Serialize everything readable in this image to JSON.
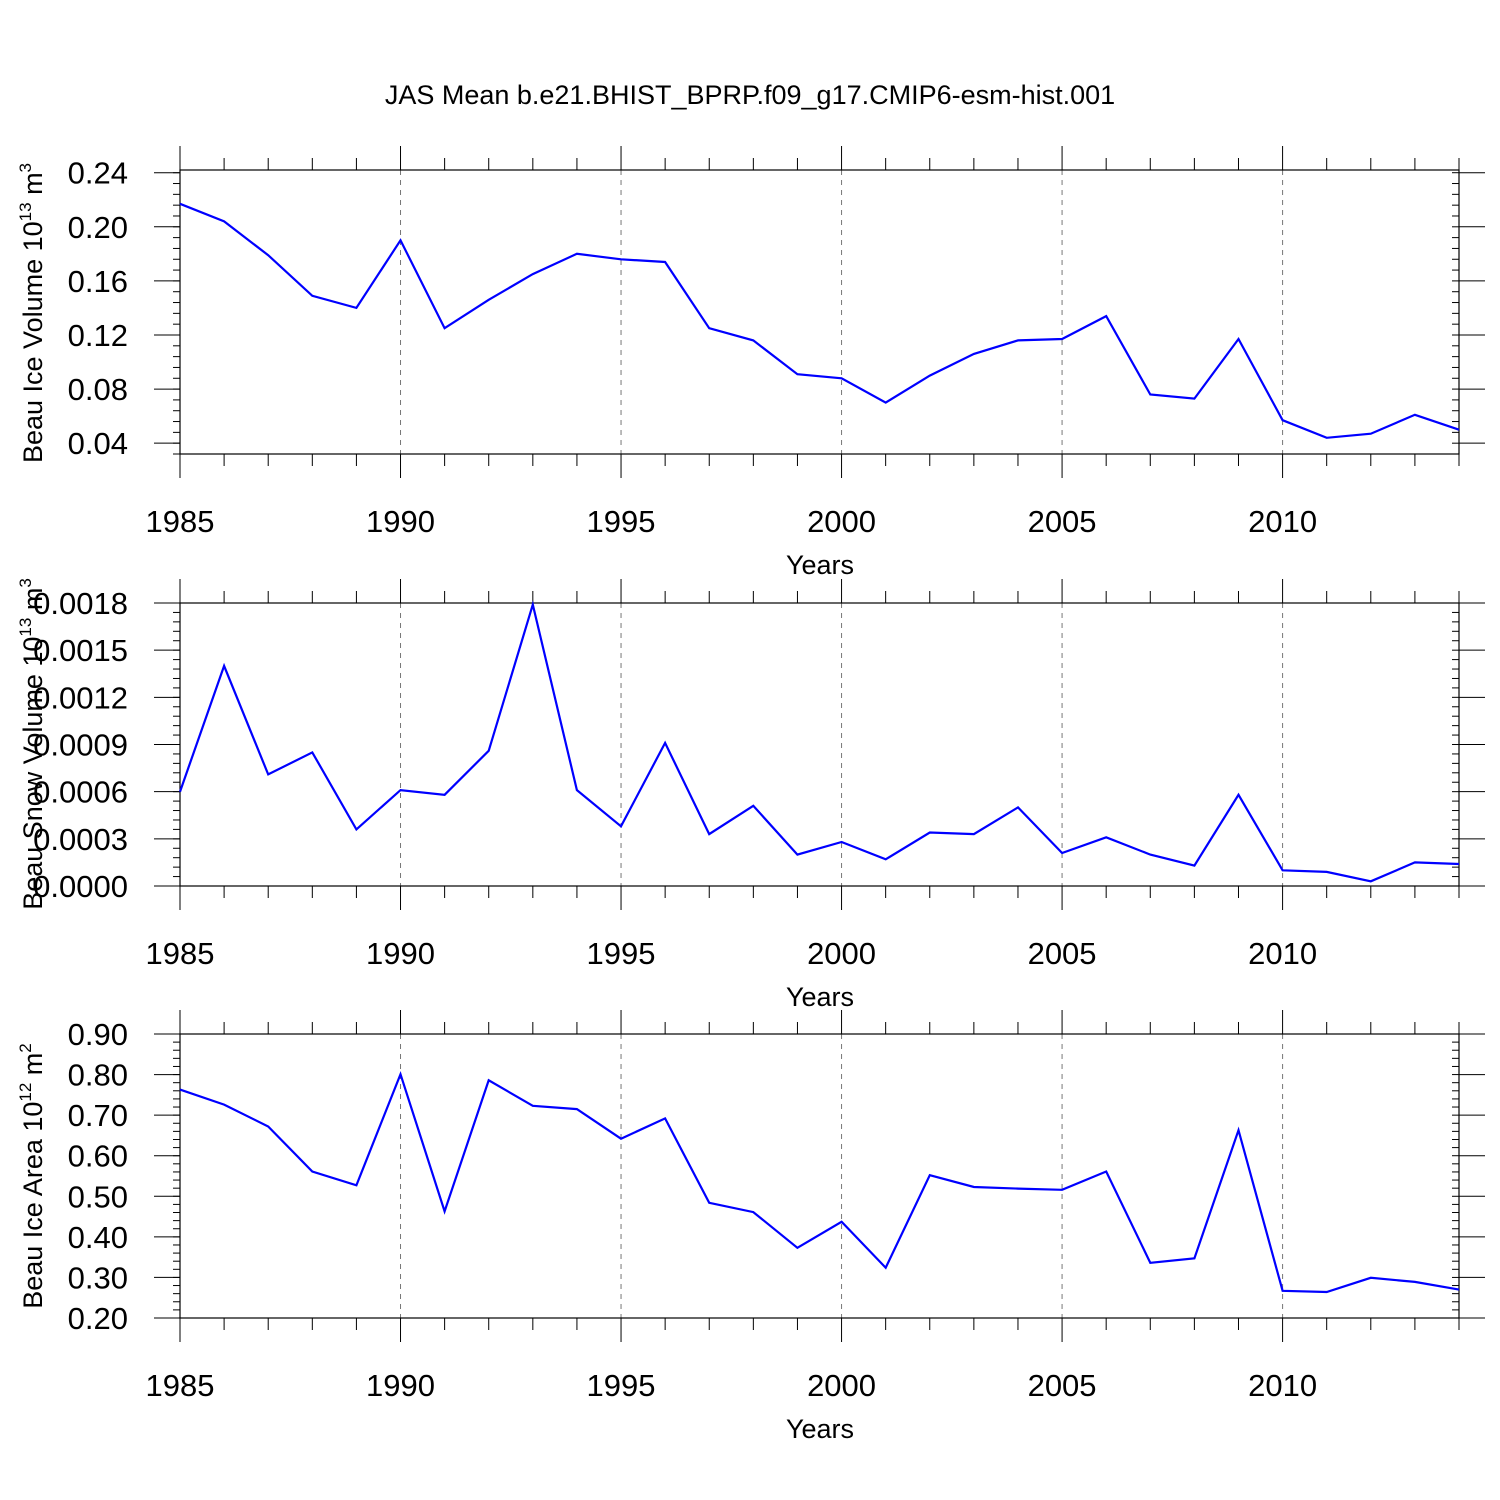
{
  "figure": {
    "title": "JAS Mean b.e21.BHIST_BPRP.f09_g17.CMIP6-esm-hist.001"
  },
  "chart_data": [
    {
      "type": "line",
      "xlabel": "Years",
      "ylabel": "Beau Ice Volume 10",
      "ylabel_sup": "13",
      "ylabel_unit": " m",
      "ylabel_unit_sup": "3",
      "xlim": [
        1985,
        2014
      ],
      "ylim": [
        0.032,
        0.242
      ],
      "x_ticks": [
        "1985",
        "1990",
        "1995",
        "2000",
        "2005",
        "2010"
      ],
      "y_ticks": [
        "0.04",
        "0.08",
        "0.12",
        "0.16",
        "0.20",
        "0.24"
      ],
      "line_color": "#0000ff",
      "grid": "vertical dashed at major x ticks",
      "series": [
        {
          "x": [
            1985,
            1986,
            1987,
            1988,
            1989,
            1990,
            1991,
            1992,
            1993,
            1994,
            1995,
            1996,
            1997,
            1998,
            1999,
            2000,
            2001,
            2002,
            2003,
            2004,
            2005,
            2006,
            2007,
            2008,
            2009,
            2010,
            2011,
            2012,
            2013,
            2014
          ],
          "values": [
            0.217,
            0.204,
            0.179,
            0.149,
            0.14,
            0.19,
            0.125,
            0.146,
            0.165,
            0.18,
            0.176,
            0.174,
            0.125,
            0.116,
            0.091,
            0.088,
            0.07,
            0.09,
            0.106,
            0.116,
            0.117,
            0.134,
            0.076,
            0.073,
            0.117,
            0.057,
            0.044,
            0.047,
            0.061,
            0.05
          ]
        }
      ]
    },
    {
      "type": "line",
      "xlabel": "Years",
      "ylabel": "Beau Snow Volume 10",
      "ylabel_sup": "13",
      "ylabel_unit": " m",
      "ylabel_unit_sup": "3",
      "xlim": [
        1985,
        2014
      ],
      "ylim": [
        0,
        0.0018
      ],
      "x_ticks": [
        "1985",
        "1990",
        "1995",
        "2000",
        "2005",
        "2010"
      ],
      "y_ticks": [
        "0.0000",
        "0.0003",
        "0.0006",
        "0.0009",
        "0.0012",
        "0.0015",
        "0.0018"
      ],
      "line_color": "#0000ff",
      "grid": "vertical dashed at major x ticks",
      "series": [
        {
          "x": [
            1985,
            1986,
            1987,
            1988,
            1989,
            1990,
            1991,
            1992,
            1993,
            1994,
            1995,
            1996,
            1997,
            1998,
            1999,
            2000,
            2001,
            2002,
            2003,
            2004,
            2005,
            2006,
            2007,
            2008,
            2009,
            2010,
            2011,
            2012,
            2013,
            2014
          ],
          "values": [
            0.0006,
            0.0014,
            0.00071,
            0.00085,
            0.00036,
            0.00061,
            0.00058,
            0.00086,
            0.00179,
            0.00061,
            0.00038,
            0.00091,
            0.00033,
            0.00051,
            0.0002,
            0.00028,
            0.00017,
            0.00034,
            0.00033,
            0.0005,
            0.00021,
            0.00031,
            0.0002,
            0.00013,
            0.00058,
            0.0001,
            9e-05,
            3e-05,
            0.00015,
            0.00014
          ]
        }
      ]
    },
    {
      "type": "line",
      "xlabel": "Years",
      "ylabel": "Beau Ice Area 10",
      "ylabel_sup": "12",
      "ylabel_unit": " m",
      "ylabel_unit_sup": "2",
      "xlim": [
        1985,
        2014
      ],
      "ylim": [
        0.2,
        0.9
      ],
      "x_ticks": [
        "1985",
        "1990",
        "1995",
        "2000",
        "2005",
        "2010"
      ],
      "y_ticks": [
        "0.20",
        "0.30",
        "0.40",
        "0.50",
        "0.60",
        "0.70",
        "0.80",
        "0.90"
      ],
      "line_color": "#0000ff",
      "grid": "vertical dashed at major x ticks",
      "series": [
        {
          "x": [
            1985,
            1986,
            1987,
            1988,
            1989,
            1990,
            1991,
            1992,
            1993,
            1994,
            1995,
            1996,
            1997,
            1998,
            1999,
            2000,
            2001,
            2002,
            2003,
            2004,
            2005,
            2006,
            2007,
            2008,
            2009,
            2010,
            2011,
            2012,
            2013,
            2014
          ],
          "values": [
            0.763,
            0.726,
            0.672,
            0.561,
            0.527,
            0.801,
            0.463,
            0.786,
            0.723,
            0.715,
            0.642,
            0.692,
            0.484,
            0.461,
            0.373,
            0.437,
            0.324,
            0.552,
            0.523,
            0.519,
            0.516,
            0.561,
            0.336,
            0.347,
            0.663,
            0.267,
            0.264,
            0.299,
            0.289,
            0.27
          ]
        }
      ]
    }
  ]
}
